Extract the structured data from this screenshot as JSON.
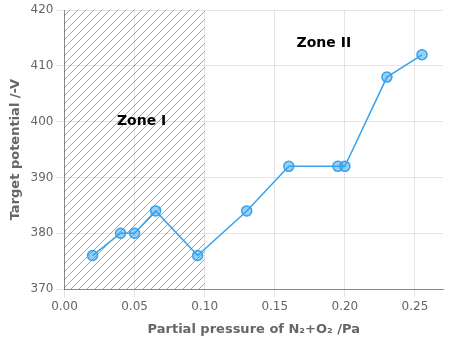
{
  "chart_data": {
    "type": "line",
    "x": [
      0.02,
      0.04,
      0.05,
      0.065,
      0.095,
      0.13,
      0.16,
      0.195,
      0.2,
      0.23,
      0.255
    ],
    "values": [
      376,
      380,
      380,
      384,
      376,
      384,
      392,
      392,
      392,
      408,
      412
    ],
    "xlabel": "Partial pressure of N₂+O₂ /Pa",
    "ylabel": "Target potential /-V",
    "xlim": [
      0.0,
      0.27
    ],
    "ylim": [
      370,
      420
    ],
    "xticks": [
      {
        "value": 0.0,
        "label": "0.00"
      },
      0.05,
      {
        "value": 0.1,
        "label": "0.10"
      },
      0.15,
      {
        "value": 0.2,
        "label": "0.20"
      },
      0.25
    ],
    "yticks": [
      370,
      380,
      390,
      400,
      410,
      420
    ],
    "shaded_x": [
      0.0,
      0.1
    ],
    "annotations": [
      {
        "text": "Zone I",
        "x": 0.055,
        "y": 400
      },
      {
        "text": "Zone II",
        "x": 0.185,
        "y": 414
      }
    ],
    "marker": "circle",
    "grid": true
  }
}
